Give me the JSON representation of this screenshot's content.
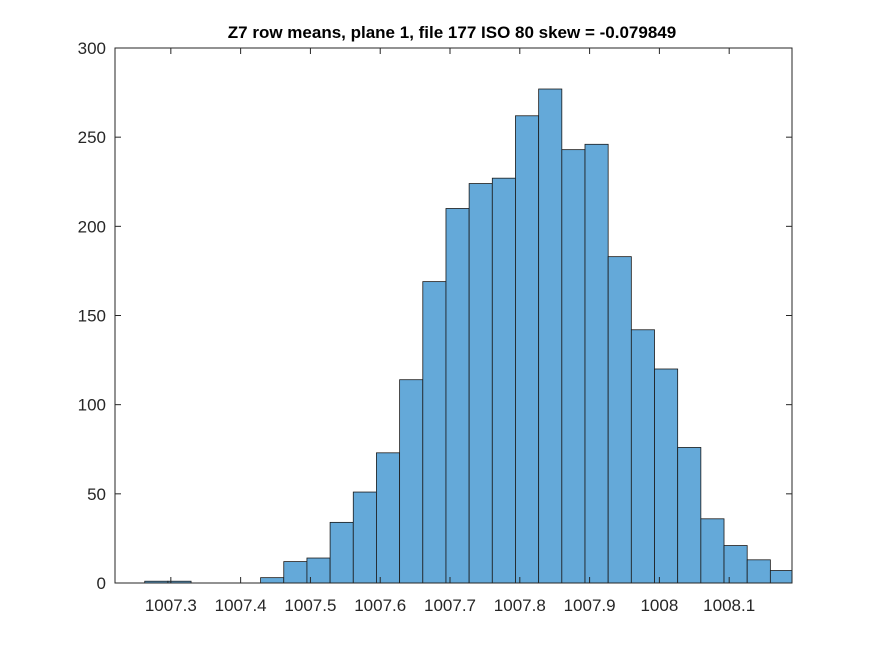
{
  "chart_data": {
    "type": "bar",
    "title": "Z7 row means, plane 1, file 177 ISO 80 skew = -0.079849",
    "xlabel": "",
    "ylabel": "",
    "xlim": [
      1007.22,
      1008.19
    ],
    "ylim": [
      0,
      300
    ],
    "grid": false,
    "bin_width": 0.0332,
    "bin_start": 1007.2626,
    "bins": [
      {
        "x": 1007.2792,
        "count": 1
      },
      {
        "x": 1007.3124,
        "count": 1
      },
      {
        "x": 1007.3456,
        "count": 0
      },
      {
        "x": 1007.3788,
        "count": 0
      },
      {
        "x": 1007.412,
        "count": 0
      },
      {
        "x": 1007.4452,
        "count": 3
      },
      {
        "x": 1007.4784,
        "count": 12
      },
      {
        "x": 1007.5116,
        "count": 14
      },
      {
        "x": 1007.5448,
        "count": 34
      },
      {
        "x": 1007.578,
        "count": 51
      },
      {
        "x": 1007.6112,
        "count": 73
      },
      {
        "x": 1007.6444,
        "count": 114
      },
      {
        "x": 1007.6776,
        "count": 169
      },
      {
        "x": 1007.7108,
        "count": 210
      },
      {
        "x": 1007.744,
        "count": 224
      },
      {
        "x": 1007.7772,
        "count": 227
      },
      {
        "x": 1007.8104,
        "count": 262
      },
      {
        "x": 1007.8436,
        "count": 277
      },
      {
        "x": 1007.8768,
        "count": 243
      },
      {
        "x": 1007.91,
        "count": 246
      },
      {
        "x": 1007.9432,
        "count": 183
      },
      {
        "x": 1007.9764,
        "count": 142
      },
      {
        "x": 1008.0096,
        "count": 120
      },
      {
        "x": 1008.0428,
        "count": 76
      },
      {
        "x": 1008.076,
        "count": 36
      },
      {
        "x": 1008.1092,
        "count": 21
      },
      {
        "x": 1008.1424,
        "count": 13
      },
      {
        "x": 1008.1756,
        "count": 7
      },
      {
        "x": 1008.2088,
        "count": 1
      }
    ],
    "x_ticks": [
      {
        "value": 1007.3,
        "label": "1007.3"
      },
      {
        "value": 1007.4,
        "label": "1007.4"
      },
      {
        "value": 1007.5,
        "label": "1007.5"
      },
      {
        "value": 1007.6,
        "label": "1007.6"
      },
      {
        "value": 1007.7,
        "label": "1007.7"
      },
      {
        "value": 1007.8,
        "label": "1007.8"
      },
      {
        "value": 1007.9,
        "label": "1007.9"
      },
      {
        "value": 1008.0,
        "label": "1008"
      },
      {
        "value": 1008.1,
        "label": "1008.1"
      }
    ],
    "y_ticks": [
      {
        "value": 0,
        "label": "0"
      },
      {
        "value": 50,
        "label": "50"
      },
      {
        "value": 100,
        "label": "100"
      },
      {
        "value": 150,
        "label": "150"
      },
      {
        "value": 200,
        "label": "200"
      },
      {
        "value": 250,
        "label": "250"
      },
      {
        "value": 300,
        "label": "300"
      }
    ]
  }
}
